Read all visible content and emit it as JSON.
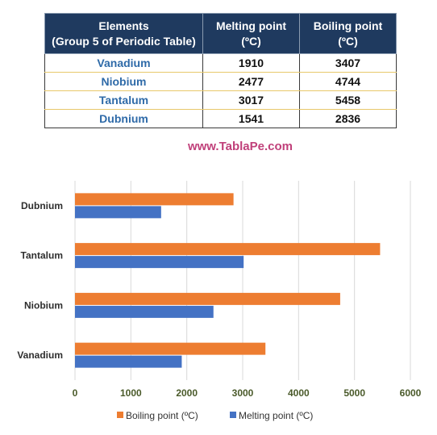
{
  "table": {
    "headers": [
      {
        "line1": "Elements",
        "line2": "(Group 5 of Periodic Table)"
      },
      {
        "line1": "Melting point",
        "line2": "(ºC)"
      },
      {
        "line1": "Boiling point",
        "line2": "(ºC)"
      }
    ],
    "rows": [
      {
        "element": "Vanadium",
        "melting": "1910",
        "boiling": "3407"
      },
      {
        "element": "Niobium",
        "melting": "2477",
        "boiling": "4744"
      },
      {
        "element": "Tantalum",
        "melting": "3017",
        "boiling": "5458"
      },
      {
        "element": "Dubnium",
        "melting": "1541",
        "boiling": "2836"
      }
    ]
  },
  "watermark": "www.TablaPe.com",
  "chart_data": {
    "type": "bar",
    "orientation": "horizontal",
    "categories": [
      "Vanadium",
      "Niobium",
      "Tantalum",
      "Dubnium"
    ],
    "series": [
      {
        "name": "Boiling point (ºC)",
        "color": "#ed7d31",
        "values": [
          3407,
          4744,
          5458,
          2836
        ]
      },
      {
        "name": "Melting point (ºC)",
        "color": "#4472c4",
        "values": [
          1910,
          2477,
          3017,
          1541
        ]
      }
    ],
    "xlim": [
      0,
      6000
    ],
    "xticks": [
      0,
      1000,
      2000,
      3000,
      4000,
      5000,
      6000
    ],
    "grid": true,
    "legend": "bottom"
  }
}
